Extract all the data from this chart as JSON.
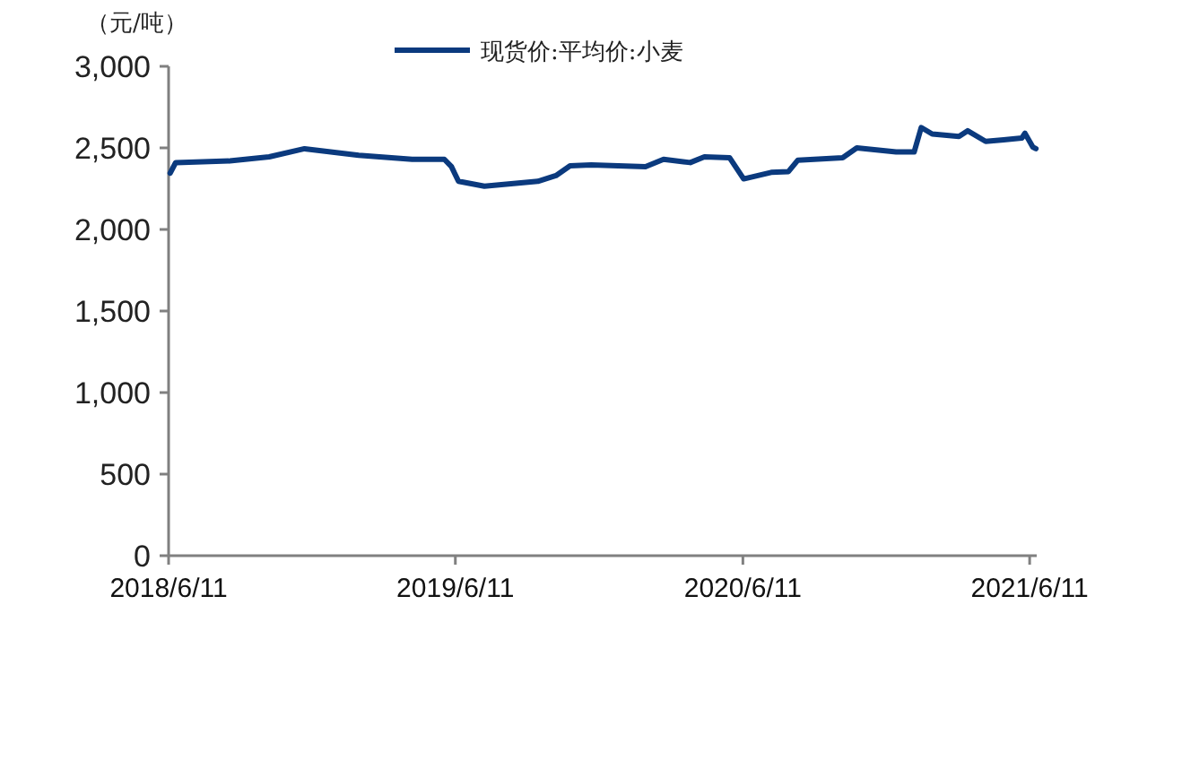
{
  "chart_data": {
    "type": "line",
    "ylabel": "（元/吨）",
    "x": [
      "2018-06-13",
      "2018-06-20",
      "2018-08-28",
      "2018-10-17",
      "2018-12-01",
      "2019-02-08",
      "2019-04-17",
      "2019-05-28",
      "2019-06-06",
      "2019-06-15",
      "2019-07-18",
      "2019-09-24",
      "2019-10-17",
      "2019-11-04",
      "2019-12-01",
      "2020-02-08",
      "2020-03-02",
      "2020-04-05",
      "2020-04-23",
      "2020-05-25",
      "2020-06-12",
      "2020-07-17",
      "2020-08-08",
      "2020-08-20",
      "2020-10-16",
      "2020-11-03",
      "2020-12-23",
      "2021-01-15",
      "2021-01-24",
      "2021-02-07",
      "2021-03-13",
      "2021-03-24",
      "2021-04-16",
      "2021-05-09",
      "2021-06-01",
      "2021-06-05",
      "2021-06-15",
      "2021-06-19"
    ],
    "series": [
      {
        "name": "现货价:平均价:小麦",
        "color": "#0b3a7e",
        "values": [
          2345,
          2410,
          2420,
          2445,
          2495,
          2455,
          2430,
          2430,
          2385,
          2295,
          2265,
          2295,
          2330,
          2390,
          2395,
          2385,
          2430,
          2410,
          2445,
          2440,
          2310,
          2350,
          2355,
          2425,
          2440,
          2500,
          2475,
          2475,
          2625,
          2585,
          2570,
          2605,
          2540,
          2550,
          2560,
          2590,
          2505,
          2495
        ]
      }
    ],
    "xlim": [
      "2018-06-11",
      "2021-06-20"
    ],
    "xticks": [
      {
        "value": "2018-06-11",
        "label": "2018/6/11"
      },
      {
        "value": "2019-06-11",
        "label": "2019/6/11"
      },
      {
        "value": "2020-06-11",
        "label": "2020/6/11"
      },
      {
        "value": "2021-06-11",
        "label": "2021/6/11"
      }
    ],
    "ylim": [
      0,
      3000
    ],
    "yticks": [
      0,
      500,
      {
        "value": 1000,
        "label": "1,000"
      },
      {
        "value": 1500,
        "label": "1,500"
      },
      {
        "value": 2000,
        "label": "2,000"
      },
      {
        "value": 2500,
        "label": "2,500"
      },
      {
        "value": 3000,
        "label": "3,000"
      }
    ],
    "legend": "top"
  }
}
